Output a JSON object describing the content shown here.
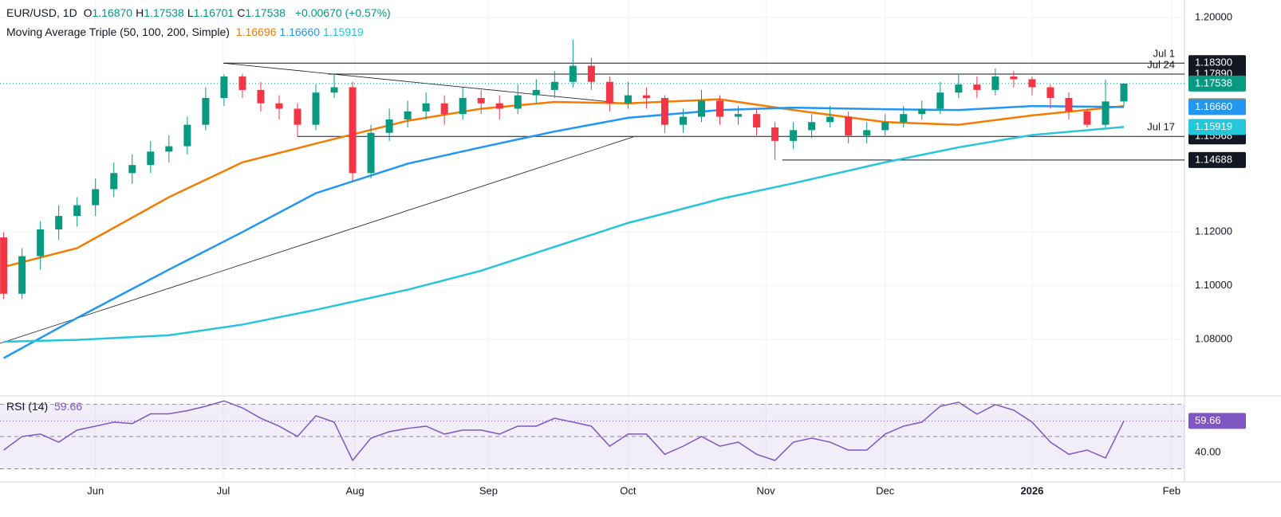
{
  "chart_data": {
    "type": "candlestick",
    "header": {
      "symbol": "EUR/USD, 1D",
      "ohlc": [
        {
          "key": "O",
          "value": "1.16870"
        },
        {
          "key": "H",
          "value": "1.17538"
        },
        {
          "key": "L",
          "value": "1.16701"
        },
        {
          "key": "C",
          "value": "1.17538"
        }
      ],
      "change": "+0.00670 (+0.57%)",
      "ma_title": "Moving Average Triple (50, 100, 200, Simple)"
    },
    "up_color": "#089981",
    "down_color": "#f23645",
    "candles": [
      [
        1.118,
        1.12,
        1.095,
        1.097
      ],
      [
        1.097,
        1.114,
        1.095,
        1.111
      ],
      [
        1.111,
        1.124,
        1.106,
        1.121
      ],
      [
        1.121,
        1.13,
        1.117,
        1.126
      ],
      [
        1.126,
        1.133,
        1.122,
        1.13
      ],
      [
        1.13,
        1.14,
        1.126,
        1.136
      ],
      [
        1.136,
        1.146,
        1.133,
        1.142
      ],
      [
        1.142,
        1.149,
        1.138,
        1.145
      ],
      [
        1.145,
        1.154,
        1.142,
        1.15
      ],
      [
        1.15,
        1.156,
        1.146,
        1.152
      ],
      [
        1.152,
        1.163,
        1.149,
        1.16
      ],
      [
        1.16,
        1.174,
        1.158,
        1.17
      ],
      [
        1.17,
        1.1789,
        1.167,
        1.178
      ],
      [
        1.178,
        1.179,
        1.17,
        1.173
      ],
      [
        1.173,
        1.176,
        1.165,
        1.168
      ],
      [
        1.168,
        1.171,
        1.162,
        1.166
      ],
      [
        1.166,
        1.168,
        1.1556,
        1.16
      ],
      [
        1.16,
        1.175,
        1.158,
        1.172
      ],
      [
        1.172,
        1.1789,
        1.17,
        1.174
      ],
      [
        1.174,
        1.176,
        1.139,
        1.142
      ],
      [
        1.142,
        1.16,
        1.14,
        1.157
      ],
      [
        1.157,
        1.166,
        1.154,
        1.162
      ],
      [
        1.162,
        1.169,
        1.159,
        1.165
      ],
      [
        1.165,
        1.172,
        1.162,
        1.168
      ],
      [
        1.168,
        1.171,
        1.16,
        1.164
      ],
      [
        1.164,
        1.174,
        1.162,
        1.17
      ],
      [
        1.17,
        1.173,
        1.164,
        1.168
      ],
      [
        1.168,
        1.171,
        1.162,
        1.166
      ],
      [
        1.166,
        1.175,
        1.164,
        1.171
      ],
      [
        1.171,
        1.177,
        1.168,
        1.173
      ],
      [
        1.173,
        1.18,
        1.17,
        1.176
      ],
      [
        1.176,
        1.1918,
        1.174,
        1.182
      ],
      [
        1.182,
        1.185,
        1.173,
        1.176
      ],
      [
        1.176,
        1.178,
        1.165,
        1.168
      ],
      [
        1.168,
        1.176,
        1.166,
        1.171
      ],
      [
        1.171,
        1.174,
        1.166,
        1.17
      ],
      [
        1.17,
        1.171,
        1.157,
        1.16
      ],
      [
        1.16,
        1.166,
        1.157,
        1.163
      ],
      [
        1.163,
        1.173,
        1.161,
        1.169
      ],
      [
        1.169,
        1.171,
        1.16,
        1.163
      ],
      [
        1.163,
        1.167,
        1.16,
        1.164
      ],
      [
        1.164,
        1.166,
        1.156,
        1.159
      ],
      [
        1.159,
        1.161,
        1.1469,
        1.154
      ],
      [
        1.154,
        1.161,
        1.151,
        1.158
      ],
      [
        1.158,
        1.164,
        1.155,
        1.161
      ],
      [
        1.161,
        1.167,
        1.159,
        1.163
      ],
      [
        1.163,
        1.165,
        1.153,
        1.156
      ],
      [
        1.156,
        1.161,
        1.153,
        1.158
      ],
      [
        1.158,
        1.164,
        1.156,
        1.161
      ],
      [
        1.161,
        1.167,
        1.159,
        1.164
      ],
      [
        1.164,
        1.169,
        1.162,
        1.166
      ],
      [
        1.166,
        1.176,
        1.164,
        1.172
      ],
      [
        1.172,
        1.179,
        1.17,
        1.175
      ],
      [
        1.175,
        1.178,
        1.17,
        1.173
      ],
      [
        1.173,
        1.181,
        1.171,
        1.178
      ],
      [
        1.178,
        1.18,
        1.174,
        1.177
      ],
      [
        1.177,
        1.178,
        1.171,
        1.174
      ],
      [
        1.174,
        1.175,
        1.166,
        1.17
      ],
      [
        1.17,
        1.172,
        1.162,
        1.165
      ],
      [
        1.165,
        1.166,
        1.159,
        1.16
      ],
      [
        1.16,
        1.1768,
        1.159,
        1.1687
      ],
      [
        1.1687,
        1.17538,
        1.16701,
        1.17538
      ]
    ],
    "series": [
      {
        "name": "SMA 50",
        "color": "#f57c00",
        "last_label": "1.16696",
        "x": [
          0,
          4,
          9,
          13,
          17,
          22,
          26,
          30,
          34,
          39,
          43,
          48,
          52,
          56,
          61
        ],
        "values": [
          1.107,
          1.114,
          1.133,
          1.146,
          1.153,
          1.1615,
          1.166,
          1.1685,
          1.168,
          1.1695,
          1.1655,
          1.161,
          1.16,
          1.1635,
          1.16696
        ]
      },
      {
        "name": "SMA 100",
        "color": "#2196f3",
        "last_label": "1.16660",
        "x": [
          0,
          4,
          9,
          13,
          17,
          22,
          26,
          30,
          34,
          39,
          43,
          48,
          52,
          56,
          61
        ],
        "values": [
          1.073,
          1.088,
          1.106,
          1.12,
          1.1345,
          1.1455,
          1.1516,
          1.1575,
          1.1626,
          1.1655,
          1.1664,
          1.1658,
          1.1655,
          1.167,
          1.1666
        ]
      },
      {
        "name": "SMA 200",
        "color": "#26c6da",
        "last_label": "1.15919",
        "x": [
          0,
          4,
          9,
          13,
          17,
          22,
          26,
          30,
          34,
          39,
          43,
          48,
          52,
          56,
          61
        ],
        "values": [
          1.0791,
          1.0798,
          1.0815,
          1.0855,
          1.091,
          1.0985,
          1.1056,
          1.1145,
          1.1234,
          1.1323,
          1.1382,
          1.146,
          1.1516,
          1.1562,
          1.15919
        ]
      }
    ],
    "levels": [
      {
        "value": 1.183,
        "label": "1.18300",
        "note": "Jul 1",
        "from": 11.96
      },
      {
        "value": 1.1789,
        "label": "1.17890",
        "note": "Jul 24",
        "from": 17.7
      },
      {
        "value": 1.15568,
        "label": "1.15568",
        "note": "Jul 17",
        "from": 16
      },
      {
        "value": 1.14688,
        "label": "1.14688",
        "from": 42.4
      }
    ],
    "trendlines": [
      {
        "x": [
          11.96,
          34.1
        ],
        "values": [
          1.183,
          1.1678
        ]
      },
      {
        "x": [
          -0.2,
          34.3
        ],
        "values": [
          1.0785,
          1.1555
        ]
      }
    ],
    "xlim": [
      -0.2,
      64.3
    ],
    "xticks": [
      {
        "value": 5,
        "label": "Jun"
      },
      {
        "value": 11.96,
        "label": "Jul"
      },
      {
        "value": 19.13,
        "label": "Aug"
      },
      {
        "value": 26.4,
        "label": "Sep"
      },
      {
        "value": 34,
        "label": "Oct"
      },
      {
        "value": 41.5,
        "label": "Nov"
      },
      {
        "value": 48,
        "label": "Dec"
      },
      {
        "value": 56,
        "label": "2026"
      },
      {
        "value": 63.6,
        "label": "Feb"
      }
    ],
    "ylim": [
      1.0589,
      1.20653
    ],
    "yticks": [
      {
        "value": 1.08,
        "label": "1.08000"
      },
      {
        "value": 1.1,
        "label": "1.10000"
      },
      {
        "value": 1.12,
        "label": "1.12000"
      },
      {
        "value": 1.2,
        "label": "1.20000"
      }
    ],
    "grid": true,
    "rsi": {
      "title": "RSI (14)",
      "value_label": "59.66",
      "color": "#7e57c2",
      "ylim": [
        21.9,
        75.1
      ],
      "yticks": [
        {
          "value": 40,
          "label": "40.00"
        }
      ],
      "levels": [
        70,
        50,
        30
      ],
      "values": [
        41.6,
        50,
        51.5,
        46.5,
        54,
        56.4,
        58.9,
        58,
        64,
        64,
        66,
        68.7,
        72,
        67.7,
        61.3,
        56.4,
        50,
        62.8,
        58.9,
        35.2,
        49,
        53,
        55,
        56.4,
        51.5,
        54,
        54,
        51.5,
        56.4,
        56.4,
        61.3,
        58.9,
        56.4,
        44,
        51.5,
        51.5,
        39,
        44,
        50,
        44,
        46.5,
        39,
        35.2,
        46.5,
        49,
        46.5,
        41.6,
        41.6,
        51.5,
        56.4,
        58.9,
        68.7,
        71.2,
        63.8,
        69.7,
        66.3,
        58.9,
        46.5,
        39,
        41.6,
        36.7,
        59.66
      ]
    }
  }
}
